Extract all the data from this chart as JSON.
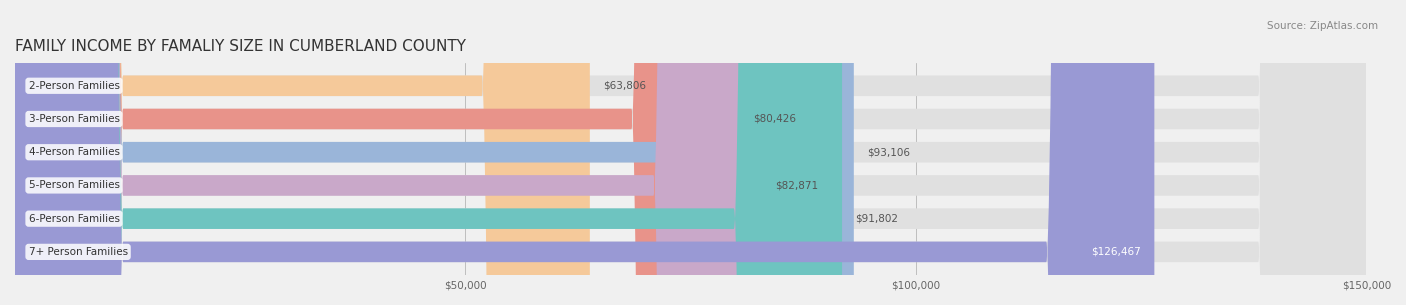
{
  "title": "FAMILY INCOME BY FAMALIY SIZE IN CUMBERLAND COUNTY",
  "source": "Source: ZipAtlas.com",
  "categories": [
    "2-Person Families",
    "3-Person Families",
    "4-Person Families",
    "5-Person Families",
    "6-Person Families",
    "7+ Person Families"
  ],
  "values": [
    63806,
    80426,
    93106,
    82871,
    91802,
    126467
  ],
  "bar_colors": [
    "#f5c99a",
    "#e8938a",
    "#9ab5d9",
    "#c9a8c9",
    "#6ec4c0",
    "#9999d4"
  ],
  "bar_label_colors": [
    "#555555",
    "#555555",
    "#555555",
    "#555555",
    "#555555",
    "#ffffff"
  ],
  "label_inside": [
    false,
    false,
    false,
    false,
    false,
    true
  ],
  "value_labels": [
    "$63,806",
    "$80,426",
    "$93,106",
    "$82,871",
    "$91,802",
    "$126,467"
  ],
  "xlim": [
    0,
    150000
  ],
  "xticks": [
    0,
    50000,
    100000,
    150000
  ],
  "xticklabels": [
    "",
    "$50,000",
    "$100,000",
    "$150,000"
  ],
  "background_color": "#f0f0f0",
  "bar_bg_color": "#e8e8e8",
  "title_fontsize": 11,
  "bar_height": 0.62,
  "figsize": [
    14.06,
    3.05
  ]
}
